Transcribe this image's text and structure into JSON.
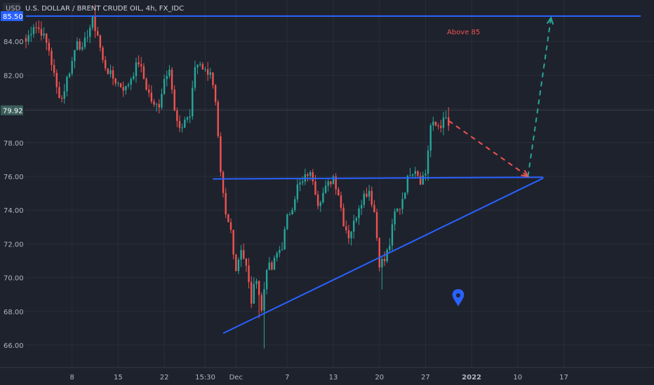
{
  "symbol_label": "U.S. DOLLAR / BRENT CRUDE OIL, 4h, FX_IDC",
  "currency_label": "USD",
  "colors": {
    "background": "#1e222d",
    "grid": "#2a2e39",
    "up": "#26a69a",
    "down": "#ef5350",
    "trendline": "#2962ff",
    "price_line": "#363a45",
    "top_line": "#2962ff",
    "price_label_bg": "#3b5e5a",
    "top_label_bg": "#2962ff",
    "bearish_arrow": "#ef5350",
    "bullish_arrow": "#26a69a",
    "annotation_text": "#ef5350",
    "pin": "#2962ff"
  },
  "chart_data": {
    "type": "candlestick",
    "ylim": [
      65.0,
      86.0
    ],
    "y_ticks": [
      66.0,
      68.0,
      70.0,
      72.0,
      74.0,
      76.0,
      78.0,
      80.0,
      82.0,
      84.0
    ],
    "y_tick_labels": [
      "66.00",
      "68.00",
      "70.00",
      "72.00",
      "74.00",
      "76.00",
      "78.00",
      "",
      "82.00",
      "84.00"
    ],
    "x_ticks": [
      {
        "label": "8",
        "index": 18
      },
      {
        "label": "15",
        "index": 36
      },
      {
        "label": "22",
        "index": 54
      },
      {
        "label": "15:30",
        "index": 70
      },
      {
        "label": "Dec",
        "index": 82
      },
      {
        "label": "7",
        "index": 102
      },
      {
        "label": "13",
        "index": 120
      },
      {
        "label": "20",
        "index": 138
      },
      {
        "label": "27",
        "index": 156
      },
      {
        "label": "2022",
        "index": 174
      },
      {
        "label": "10",
        "index": 192
      },
      {
        "label": "17",
        "index": 210
      }
    ],
    "last_price": 79.92,
    "last_price_label": "79.92",
    "top_level": 85.5,
    "top_level_label": "85.50",
    "annotation": "Above 85",
    "candles": [],
    "anchor_closes": [
      [
        0,
        84.0
      ],
      [
        3,
        85.0
      ],
      [
        6,
        84.6
      ],
      [
        9,
        83.5
      ],
      [
        12,
        81.2
      ],
      [
        14,
        80.6
      ],
      [
        16,
        81.8
      ],
      [
        18,
        82.8
      ],
      [
        20,
        84.2
      ],
      [
        22,
        83.4
      ],
      [
        24,
        84.5
      ],
      [
        26,
        85.2
      ],
      [
        28,
        84.4
      ],
      [
        30,
        82.8
      ],
      [
        33,
        82.0
      ],
      [
        36,
        81.5
      ],
      [
        39,
        81.2
      ],
      [
        42,
        82.2
      ],
      [
        44,
        82.8
      ],
      [
        47,
        81.3
      ],
      [
        50,
        80.1
      ],
      [
        52,
        80.3
      ],
      [
        54,
        81.8
      ],
      [
        56,
        82.6
      ],
      [
        58,
        79.8
      ],
      [
        60,
        78.6
      ],
      [
        62,
        79.4
      ],
      [
        64,
        79.6
      ],
      [
        66,
        82.5
      ],
      [
        68,
        82.8
      ],
      [
        70,
        82.2
      ],
      [
        72,
        82.3
      ],
      [
        74,
        80.2
      ],
      [
        76,
        76.0
      ],
      [
        78,
        73.6
      ],
      [
        80,
        72.8
      ],
      [
        82,
        70.5
      ],
      [
        84,
        71.8
      ],
      [
        86,
        70.6
      ],
      [
        88,
        68.6
      ],
      [
        90,
        70.1
      ],
      [
        92,
        68.0
      ],
      [
        94,
        70.7
      ],
      [
        96,
        70.5
      ],
      [
        98,
        71.4
      ],
      [
        100,
        71.9
      ],
      [
        102,
        73.5
      ],
      [
        104,
        74.3
      ],
      [
        106,
        75.4
      ],
      [
        108,
        75.6
      ],
      [
        110,
        76.2
      ],
      [
        112,
        75.9
      ],
      [
        114,
        74.5
      ],
      [
        116,
        75.0
      ],
      [
        118,
        75.5
      ],
      [
        120,
        76.0
      ],
      [
        122,
        75.0
      ],
      [
        124,
        73.3
      ],
      [
        126,
        72.5
      ],
      [
        128,
        73.2
      ],
      [
        130,
        74.3
      ],
      [
        132,
        74.9
      ],
      [
        134,
        75.2
      ],
      [
        136,
        73.9
      ],
      [
        138,
        70.9
      ],
      [
        140,
        71.0
      ],
      [
        142,
        72.0
      ],
      [
        144,
        73.8
      ],
      [
        146,
        74.2
      ],
      [
        148,
        75.3
      ],
      [
        150,
        76.3
      ],
      [
        152,
        76.5
      ],
      [
        154,
        75.8
      ],
      [
        156,
        76.2
      ],
      [
        158,
        79.0
      ],
      [
        160,
        79.0
      ],
      [
        162,
        79.1
      ],
      [
        164,
        79.4
      ],
      [
        165,
        79.0
      ]
    ],
    "trendlines": [
      {
        "name": "horizontal-resistance",
        "from": [
          73,
          75.85
        ],
        "to": [
          202,
          75.95
        ]
      },
      {
        "name": "rising-support",
        "from": [
          77,
          66.7
        ],
        "to": [
          202,
          75.9
        ]
      },
      {
        "name": "top-level",
        "from": [
          0,
          85.5
        ],
        "to": [
          240,
          85.5
        ]
      }
    ],
    "projection_arrows": [
      {
        "name": "bearish-projection",
        "from": [
          165,
          79.3
        ],
        "to": [
          196,
          76.0
        ]
      },
      {
        "name": "bullish-projection",
        "from": [
          196,
          76.0
        ],
        "to": [
          205,
          85.4
        ]
      }
    ]
  }
}
